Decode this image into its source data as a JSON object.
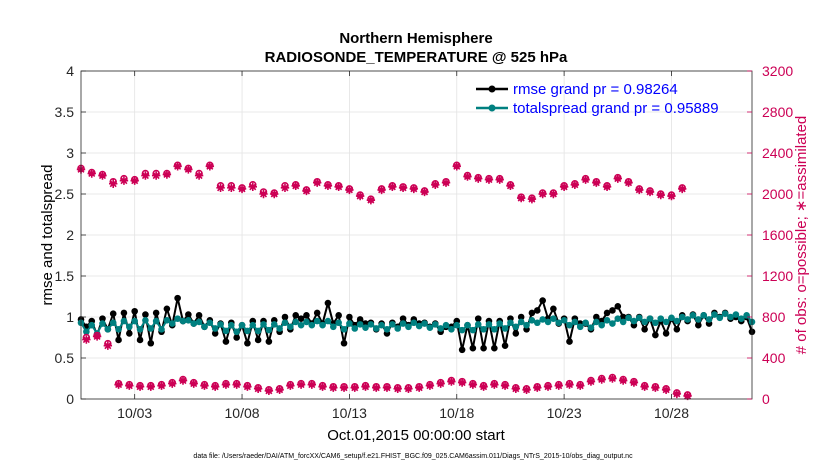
{
  "chart_data": {
    "type": "line",
    "title_line1": "Northern Hemisphere",
    "title_line2": "RADIOSONDE_TEMPERATURE @ 525 hPa",
    "xlabel": "Oct.01,2015 00:00:00 start",
    "ylabel_left": "rmse and totalspread",
    "ylabel_right": "# of obs: o=possible; ∗=assimilated",
    "footer": "data file: /Users/raeder/DAI/ATM_forcXX/CAM6_setup/f.e21.FHIST_BGC.f09_025.CAM6assim.011/Diags_NTrS_2015-10/obs_diag_output.nc",
    "xlim": [
      0.5,
      31.75
    ],
    "ylim_left": [
      0,
      4
    ],
    "ylim_right": [
      0,
      3200
    ],
    "x_ticks": [
      3,
      8,
      13,
      18,
      23,
      28
    ],
    "x_tick_labels": [
      "10/03",
      "10/08",
      "10/13",
      "10/18",
      "10/23",
      "10/28"
    ],
    "y_left_ticks": [
      0,
      0.5,
      1,
      1.5,
      2,
      2.5,
      3,
      3.5,
      4
    ],
    "y_left_tick_labels": [
      "0",
      "0.5",
      "1",
      "1.5",
      "2",
      "2.5",
      "3",
      "3.5",
      "4"
    ],
    "y_right_ticks": [
      0,
      400,
      800,
      1200,
      1600,
      2000,
      2400,
      2800,
      3200
    ],
    "y_right_tick_labels": [
      "0",
      "400",
      "800",
      "1200",
      "1600",
      "2000",
      "2400",
      "2800",
      "3200"
    ],
    "grid": true,
    "legend_position": "top-right",
    "x_start": 0.5,
    "x_step": 0.25,
    "series": [
      {
        "name": "rmse grand pr = 0.98264",
        "color": "#000000",
        "axis": "left",
        "values": [
          0.97,
          0.88,
          0.95,
          0.78,
          0.98,
          0.85,
          1.04,
          0.72,
          1.05,
          0.8,
          1.07,
          0.72,
          1.03,
          0.68,
          1.05,
          0.82,
          1.1,
          0.9,
          1.23,
          0.95,
          1.03,
          0.92,
          1.02,
          0.88,
          0.96,
          0.8,
          0.92,
          0.7,
          0.93,
          0.75,
          0.9,
          0.68,
          0.95,
          0.72,
          0.95,
          0.7,
          0.96,
          0.82,
          1.0,
          0.85,
          1.02,
          0.98,
          1.02,
          0.92,
          1.05,
          0.92,
          1.17,
          0.92,
          1.02,
          0.68,
          1.0,
          0.9,
          0.97,
          0.92,
          0.93,
          0.85,
          0.92,
          0.8,
          0.93,
          0.88,
          0.98,
          0.9,
          0.97,
          0.92,
          0.93,
          0.88,
          0.92,
          0.82,
          0.88,
          0.88,
          0.95,
          0.6,
          0.9,
          0.62,
          0.98,
          0.62,
          0.95,
          0.62,
          0.95,
          0.65,
          0.98,
          0.8,
          1.0,
          0.85,
          1.05,
          1.08,
          1.2,
          0.98,
          1.1,
          0.92,
          0.98,
          0.7,
          0.98,
          0.92,
          0.92,
          0.85,
          1.0,
          0.95,
          1.05,
          1.08,
          1.13,
          1.0,
          1.0,
          0.9,
          1.0,
          0.85,
          0.98,
          0.78,
          0.95,
          0.8,
          0.98,
          0.85,
          1.02,
          0.95,
          1.03,
          0.9,
          1.02,
          0.92,
          1.05,
          1.0,
          1.05,
          0.98,
          1.0,
          0.95,
          1.0,
          0.82
        ]
      },
      {
        "name": "totalspread grand pr = 0.95889",
        "color": "#008080",
        "axis": "left",
        "values": [
          0.93,
          0.82,
          0.9,
          0.8,
          0.92,
          0.85,
          0.93,
          0.85,
          0.95,
          0.88,
          0.95,
          0.85,
          0.96,
          0.86,
          0.95,
          0.85,
          0.96,
          0.92,
          0.98,
          0.95,
          0.96,
          0.92,
          0.94,
          0.88,
          0.93,
          0.86,
          0.91,
          0.83,
          0.9,
          0.82,
          0.9,
          0.83,
          0.9,
          0.83,
          0.91,
          0.84,
          0.91,
          0.86,
          0.93,
          0.88,
          0.94,
          0.9,
          0.94,
          0.9,
          0.95,
          0.9,
          0.95,
          0.88,
          0.93,
          0.85,
          0.92,
          0.86,
          0.91,
          0.87,
          0.91,
          0.86,
          0.9,
          0.85,
          0.91,
          0.86,
          0.92,
          0.88,
          0.93,
          0.89,
          0.92,
          0.87,
          0.91,
          0.86,
          0.9,
          0.85,
          0.9,
          0.84,
          0.9,
          0.84,
          0.91,
          0.85,
          0.91,
          0.85,
          0.92,
          0.86,
          0.93,
          0.88,
          0.94,
          0.9,
          0.96,
          0.93,
          0.97,
          0.94,
          0.98,
          0.93,
          0.96,
          0.9,
          0.94,
          0.88,
          0.93,
          0.87,
          0.94,
          0.9,
          0.96,
          0.92,
          0.98,
          0.94,
          0.99,
          0.95,
          0.99,
          0.94,
          0.98,
          0.93,
          0.98,
          0.94,
          0.99,
          0.95,
          1.0,
          0.97,
          1.02,
          0.97,
          1.02,
          0.97,
          1.03,
          0.99,
          1.04,
          1.0,
          1.03,
          0.98,
          1.02,
          0.94
        ]
      },
      {
        "name": "possible",
        "color": "#cc0055",
        "axis": "right",
        "marker": "circle",
        "values": [
          2250,
          600,
          2210,
          620,
          2190,
          540,
          2120,
          150,
          2150,
          140,
          2140,
          130,
          2200,
          130,
          2200,
          140,
          2200,
          160,
          2280,
          190,
          2250,
          160,
          2200,
          140,
          2280,
          130,
          2080,
          150,
          2080,
          150,
          2060,
          130,
          2090,
          110,
          2020,
          90,
          2010,
          100,
          2080,
          140,
          2090,
          150,
          2040,
          150,
          2120,
          130,
          2090,
          120,
          2080,
          120,
          2050,
          120,
          1990,
          130,
          1950,
          120,
          2050,
          120,
          2080,
          110,
          2070,
          110,
          2060,
          120,
          2030,
          140,
          2100,
          160,
          2120,
          180,
          2280,
          170,
          2180,
          150,
          2160,
          130,
          2150,
          150,
          2150,
          140,
          2090,
          110,
          1970,
          100,
          1960,
          120,
          2010,
          130,
          2010,
          140,
          2080,
          150,
          2100,
          140,
          2150,
          180,
          2120,
          200,
          2080,
          210,
          2160,
          190,
          2120,
          170,
          2050,
          130,
          2030,
          120,
          2000,
          100,
          1990,
          60,
          2060,
          40
        ]
      },
      {
        "name": "assimilated",
        "color": "#cc0055",
        "axis": "right",
        "marker": "star",
        "values": [
          2240,
          580,
          2200,
          610,
          2180,
          520,
          2100,
          140,
          2130,
          130,
          2130,
          120,
          2180,
          120,
          2180,
          130,
          2190,
          150,
          2270,
          180,
          2240,
          150,
          2180,
          130,
          2270,
          120,
          2060,
          140,
          2060,
          140,
          2050,
          120,
          2070,
          100,
          2000,
          80,
          2000,
          90,
          2060,
          130,
          2080,
          140,
          2030,
          140,
          2110,
          120,
          2080,
          110,
          2070,
          110,
          2040,
          110,
          1980,
          120,
          1940,
          110,
          2040,
          110,
          2070,
          100,
          2060,
          100,
          2050,
          110,
          2020,
          130,
          2090,
          150,
          2110,
          170,
          2270,
          160,
          2170,
          140,
          2150,
          120,
          2140,
          140,
          2140,
          130,
          2080,
          100,
          1960,
          90,
          1950,
          110,
          2000,
          120,
          2000,
          130,
          2070,
          140,
          2090,
          130,
          2140,
          170,
          2110,
          190,
          2070,
          200,
          2150,
          180,
          2110,
          160,
          2040,
          120,
          2020,
          110,
          1990,
          90,
          1980,
          50,
          2050,
          30
        ]
      }
    ]
  }
}
